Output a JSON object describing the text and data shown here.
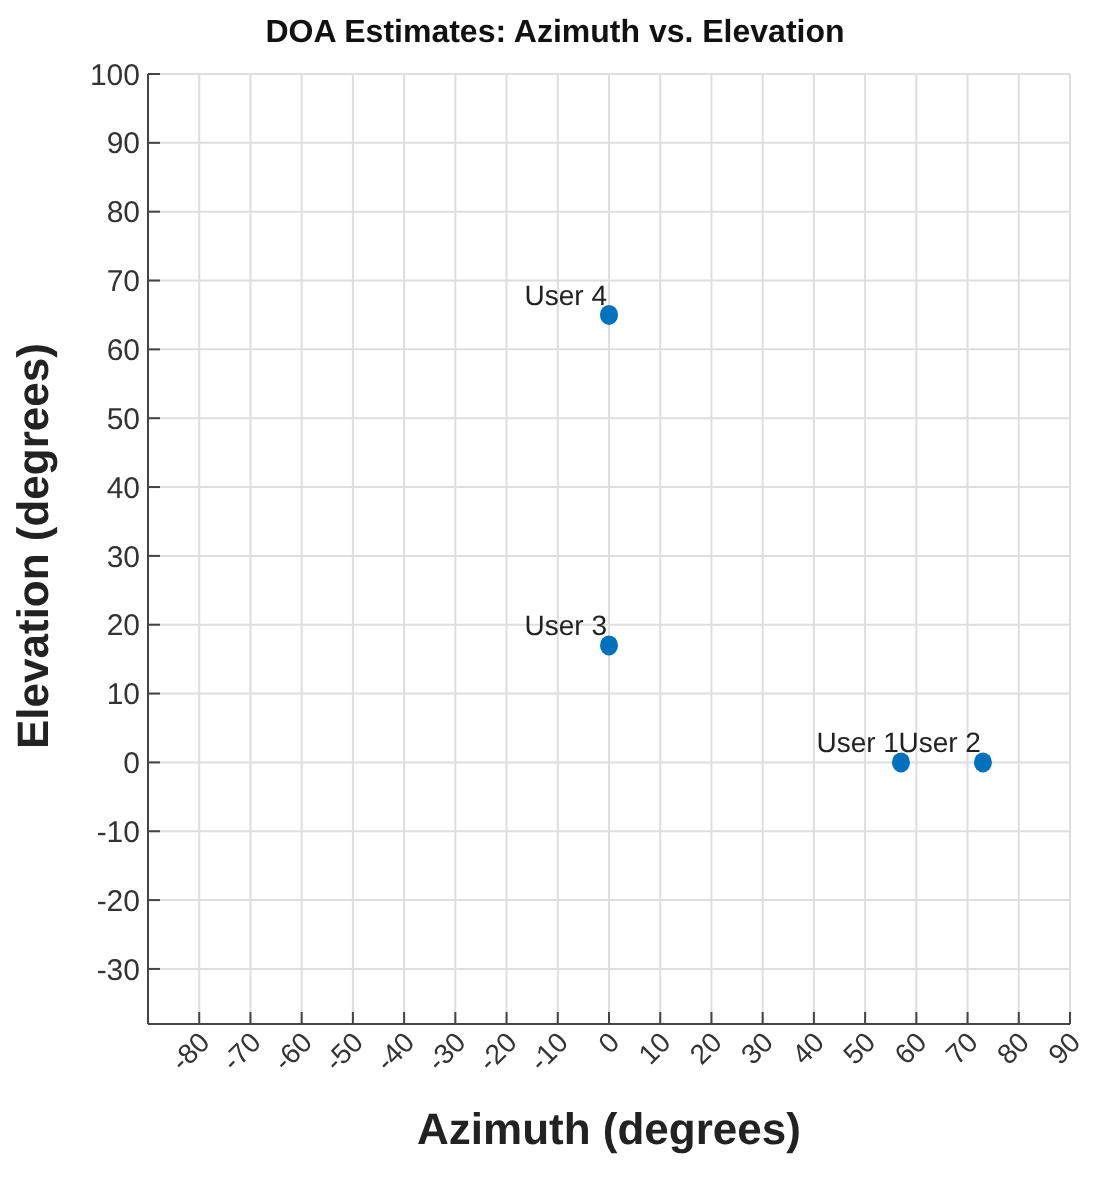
{
  "chart_data": {
    "type": "scatter",
    "title": "DOA Estimates: Azimuth vs. Elevation",
    "xlabel": "Azimuth (degrees)",
    "ylabel": "Elevation (degrees)",
    "x": [
      57,
      73,
      0,
      0
    ],
    "series": [
      {
        "color": "#0072bd",
        "values": [
          0,
          0,
          17,
          65
        ]
      }
    ],
    "annotations": [
      {
        "text": "User 1",
        "x": 57,
        "y": 0
      },
      {
        "text": "User 2",
        "x": 73,
        "y": 0
      },
      {
        "text": "User 3",
        "x": 0,
        "y": 17
      },
      {
        "text": "User 4",
        "x": 0,
        "y": 65
      }
    ],
    "xlim": [
      -90,
      90
    ],
    "xticks": [
      -80,
      -70,
      -60,
      -50,
      -40,
      -30,
      -20,
      -10,
      0,
      10,
      20,
      30,
      40,
      50,
      60,
      70,
      80,
      90
    ],
    "ylim": [
      -38,
      100
    ],
    "yticks": [
      -30,
      -20,
      -10,
      0,
      10,
      20,
      30,
      40,
      50,
      60,
      70,
      80,
      90,
      100
    ],
    "grid": true,
    "marker": "circle",
    "legend": false
  }
}
